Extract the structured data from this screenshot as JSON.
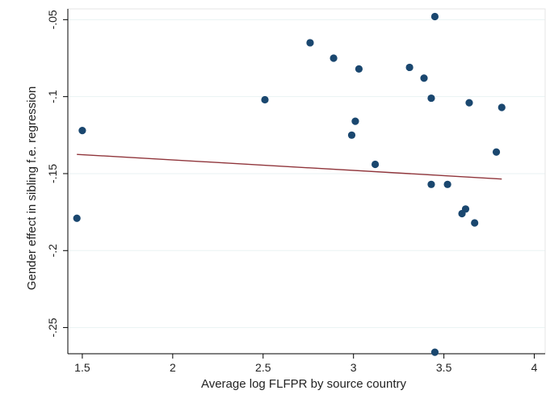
{
  "chart_data": {
    "type": "scatter",
    "title": "",
    "xlabel": "Average log FLFPR by source country",
    "ylabel": "Gender effect in sibling f.e. regression",
    "xlim": [
      1.42,
      4.06
    ],
    "ylim": [
      -0.267,
      -0.043
    ],
    "xticks": [
      {
        "value": 1.5,
        "label": "1.5"
      },
      {
        "value": 2,
        "label": "2"
      },
      {
        "value": 2.5,
        "label": "2.5"
      },
      {
        "value": 3,
        "label": "3"
      },
      {
        "value": 3.5,
        "label": "3.5"
      },
      {
        "value": 4,
        "label": "4"
      }
    ],
    "yticks": [
      {
        "value": -0.05,
        "label": "-.05"
      },
      {
        "value": -0.1,
        "label": "-.1"
      },
      {
        "value": -0.15,
        "label": "-.15"
      },
      {
        "value": -0.2,
        "label": "-.2"
      },
      {
        "value": -0.25,
        "label": "-.25"
      }
    ],
    "grid": "horizontal",
    "points": [
      {
        "x": 1.47,
        "y": -0.179
      },
      {
        "x": 1.5,
        "y": -0.122
      },
      {
        "x": 2.51,
        "y": -0.102
      },
      {
        "x": 2.76,
        "y": -0.065
      },
      {
        "x": 2.89,
        "y": -0.075
      },
      {
        "x": 2.99,
        "y": -0.125
      },
      {
        "x": 3.01,
        "y": -0.116
      },
      {
        "x": 3.03,
        "y": -0.082
      },
      {
        "x": 3.12,
        "y": -0.144
      },
      {
        "x": 3.31,
        "y": -0.081
      },
      {
        "x": 3.39,
        "y": -0.088
      },
      {
        "x": 3.43,
        "y": -0.101
      },
      {
        "x": 3.43,
        "y": -0.157
      },
      {
        "x": 3.45,
        "y": -0.048
      },
      {
        "x": 3.45,
        "y": -0.266
      },
      {
        "x": 3.52,
        "y": -0.157
      },
      {
        "x": 3.6,
        "y": -0.176
      },
      {
        "x": 3.62,
        "y": -0.173
      },
      {
        "x": 3.64,
        "y": -0.104
      },
      {
        "x": 3.67,
        "y": -0.182
      },
      {
        "x": 3.79,
        "y": -0.136
      },
      {
        "x": 3.82,
        "y": -0.107
      }
    ],
    "fit_line": {
      "x": [
        1.47,
        3.82
      ],
      "y": [
        -0.1375,
        -0.1535
      ]
    },
    "colors": {
      "marker": "#1a476f",
      "fit_line": "#90353b",
      "grid": "#eaf2f3",
      "axis": "#000000"
    }
  }
}
